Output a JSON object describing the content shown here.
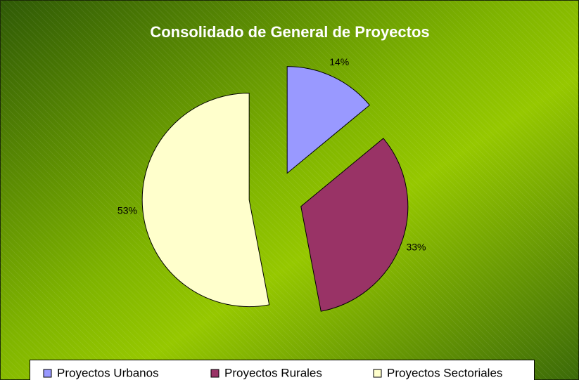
{
  "chart_data": {
    "type": "pie",
    "title": "Consolidado de General de Proyectos",
    "categories": [
      "Proyectos Urbanos",
      "Proyectos Rurales",
      "Proyectos Sectoriales"
    ],
    "values": [
      14,
      33,
      53
    ],
    "value_labels": [
      "14%",
      "33%",
      "53%"
    ],
    "colors": [
      "#9999ff",
      "#993366",
      "#ffffcc"
    ],
    "legend": "bottom"
  }
}
